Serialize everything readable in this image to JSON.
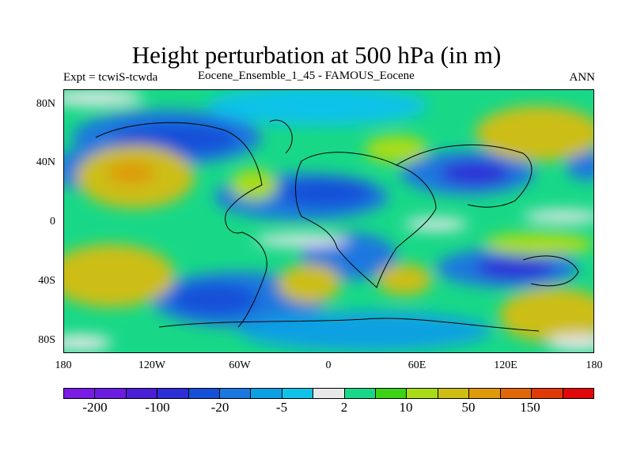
{
  "title": "Height perturbation at 500 hPa (in m)",
  "subtitle_left": "Expt = tcwiS-tcwda",
  "subtitle_center": "Eocene_Ensemble_1_45 - FAMOUS_Eocene",
  "subtitle_right": "ANN",
  "lat_labels": [
    "80N",
    "40N",
    "0",
    "40S",
    "80S"
  ],
  "lon_labels": [
    "180",
    "120W",
    "60W",
    "0",
    "60E",
    "120E",
    "180"
  ],
  "colorbar": {
    "colors": [
      "#7a1be6",
      "#6a1ce0",
      "#4a1fd6",
      "#2d2ed6",
      "#1450d8",
      "#1a78de",
      "#0aa0e2",
      "#10c2e8",
      "#e8e8e8",
      "#18d887",
      "#3ed216",
      "#a8dc16",
      "#ccbe12",
      "#de9a0a",
      "#e06808",
      "#e03a08",
      "#e00808"
    ],
    "labels": [
      "-200",
      "-100",
      "-20",
      "-5",
      "2",
      "10",
      "50",
      "150"
    ]
  }
}
